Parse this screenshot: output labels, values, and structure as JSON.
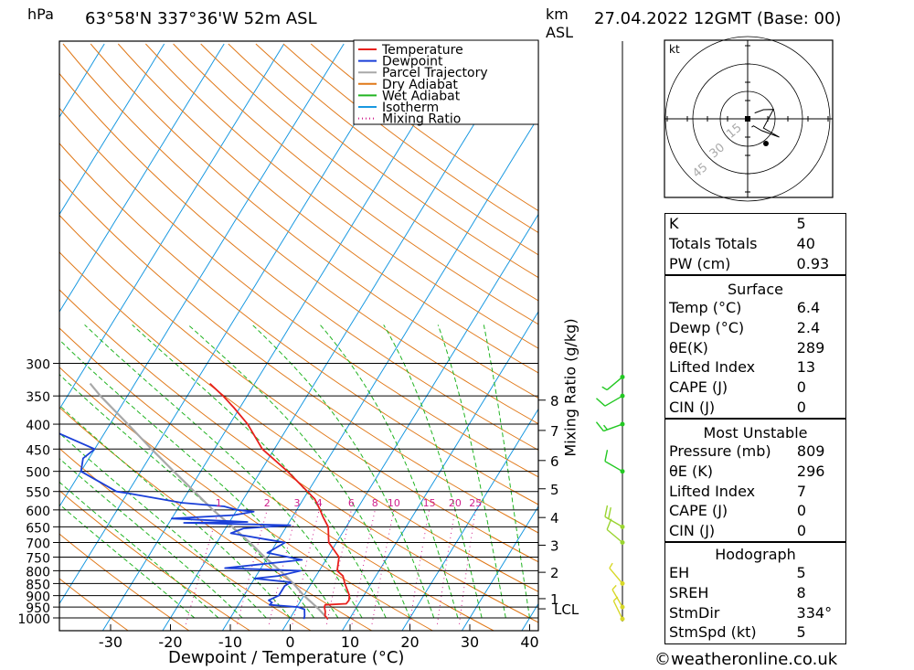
{
  "header": {
    "hpa_label": "hPa",
    "location": "63°58'N  337°36'W  52m  ASL",
    "km_label": "km",
    "asl_label": "ASL",
    "datetime": "27.04.2022  12GMT  (Base: 00)"
  },
  "chart_data": {
    "type": "skew-t",
    "xlabel": "Dewpoint / Temperature (°C)",
    "ylabel_right": "Mixing Ratio (g/kg)",
    "y_ticks_hpa": [
      300,
      350,
      400,
      450,
      500,
      550,
      600,
      650,
      700,
      750,
      800,
      850,
      900,
      950,
      1000
    ],
    "x_ticks_c": [
      -30,
      -20,
      -10,
      0,
      10,
      20,
      30,
      40
    ],
    "km_ticks": [
      {
        "km": "8",
        "p": 357
      },
      {
        "km": "7",
        "p": 412
      },
      {
        "km": "6",
        "p": 475
      },
      {
        "km": "5",
        "p": 543
      },
      {
        "km": "4",
        "p": 622
      },
      {
        "km": "3",
        "p": 709
      },
      {
        "km": "2",
        "p": 806
      },
      {
        "km": "1",
        "p": 913
      },
      {
        "km": "LCL",
        "p": 958
      }
    ],
    "mixing_ratio_labels": [
      "1",
      "2",
      "3",
      "4",
      "6",
      "8",
      "10",
      "15",
      "20",
      "25"
    ],
    "legend": [
      "Temperature",
      "Dewpoint",
      "Parcel Trajectory",
      "Dry Adiabat",
      "Wet Adiabat",
      "Isotherm",
      "Mixing Ratio"
    ],
    "colors": {
      "temperature": "#e8201c",
      "dewpoint": "#1a3fd8",
      "parcel": "#a8a8a8",
      "dry_adiabat": "#e07818",
      "wet_adiabat": "#22b422",
      "isotherm": "#1898e0",
      "mixing_ratio": "#d0208c"
    },
    "temperature": [
      [
        1005,
        6.4
      ],
      [
        990,
        5.6
      ],
      [
        970,
        5.2
      ],
      [
        950,
        4.6
      ],
      [
        940,
        4.5
      ],
      [
        935,
        7.9
      ],
      [
        920,
        8.0
      ],
      [
        900,
        7.6
      ],
      [
        850,
        5.6
      ],
      [
        820,
        4.5
      ],
      [
        800,
        3.0
      ],
      [
        750,
        1.9
      ],
      [
        700,
        -1.3
      ],
      [
        650,
        -3.0
      ],
      [
        620,
        -4.9
      ],
      [
        600,
        -6.1
      ],
      [
        570,
        -8.1
      ],
      [
        550,
        -10.1
      ],
      [
        500,
        -15.5
      ],
      [
        450,
        -22.0
      ],
      [
        400,
        -27.0
      ],
      [
        370,
        -31.0
      ],
      [
        350,
        -34.0
      ],
      [
        330,
        -37.5
      ]
    ],
    "dewpoint": [
      [
        1005,
        2.4
      ],
      [
        990,
        2.2
      ],
      [
        960,
        1.5
      ],
      [
        950,
        0.2
      ],
      [
        940,
        -4.8
      ],
      [
        930,
        -4.6
      ],
      [
        920,
        -5.4
      ],
      [
        900,
        -4.2
      ],
      [
        860,
        -4.2
      ],
      [
        845,
        -3.6
      ],
      [
        830,
        -10.0
      ],
      [
        820,
        -6.3
      ],
      [
        800,
        -3.1
      ],
      [
        790,
        -16.0
      ],
      [
        760,
        -4.0
      ],
      [
        735,
        -10.5
      ],
      [
        700,
        -8.6
      ],
      [
        690,
        -12.0
      ],
      [
        670,
        -18.6
      ],
      [
        655,
        -17.0
      ],
      [
        645,
        -9.5
      ],
      [
        638,
        -27.5
      ],
      [
        635,
        -17.0
      ],
      [
        625,
        -30.0
      ],
      [
        615,
        -20.0
      ],
      [
        605,
        -17.0
      ],
      [
        600,
        -20.0
      ],
      [
        590,
        -22.5
      ],
      [
        580,
        -30.0
      ],
      [
        555,
        -39.8
      ],
      [
        550,
        -42.0
      ],
      [
        500,
        -50.0
      ],
      [
        470,
        -51.0
      ],
      [
        450,
        -50.0
      ],
      [
        400,
        -62.0
      ],
      [
        360,
        -70.0
      ],
      [
        340,
        -72.0
      ],
      [
        330,
        -68.0
      ],
      [
        315,
        -73.0
      ]
    ],
    "parcel": [
      [
        1005,
        6.4
      ],
      [
        958,
        3.8
      ],
      [
        900,
        0.0
      ],
      [
        850,
        -3.0
      ],
      [
        800,
        -6.5
      ],
      [
        750,
        -10.5
      ],
      [
        700,
        -14.5
      ],
      [
        650,
        -19.0
      ],
      [
        600,
        -24.0
      ],
      [
        550,
        -29.0
      ],
      [
        500,
        -34.5
      ],
      [
        450,
        -40.5
      ],
      [
        400,
        -47.0
      ],
      [
        350,
        -54.5
      ],
      [
        330,
        -57.5
      ]
    ],
    "wind_barbs": [
      {
        "p": 1005,
        "dir": 334,
        "kt": 5
      },
      {
        "p": 950,
        "dir": 330,
        "kt": 5
      },
      {
        "p": 850,
        "dir": 320,
        "kt": 5
      },
      {
        "p": 700,
        "dir": 310,
        "kt": 10
      },
      {
        "p": 650,
        "dir": 300,
        "kt": 20
      },
      {
        "p": 500,
        "dir": 300,
        "kt": 10
      },
      {
        "p": 400,
        "dir": 250,
        "kt": 15
      },
      {
        "p": 350,
        "dir": 240,
        "kt": 10
      },
      {
        "p": 320,
        "dir": 230,
        "kt": 5
      }
    ],
    "hodograph": {
      "unit": "kt",
      "ring_labels": [
        "15",
        "30",
        "45"
      ]
    }
  },
  "indices": {
    "top": [
      {
        "label": "K",
        "value": "5"
      },
      {
        "label": "Totals Totals",
        "value": "40"
      },
      {
        "label": "PW (cm)",
        "value": "0.93"
      }
    ],
    "surface": {
      "title": "Surface",
      "rows": [
        {
          "label": "Temp (°C)",
          "value": "6.4"
        },
        {
          "label": "Dewp (°C)",
          "value": "2.4"
        },
        {
          "label": "θE(K)",
          "value": "289"
        },
        {
          "label": "Lifted Index",
          "value": "13"
        },
        {
          "label": "CAPE (J)",
          "value": "0"
        },
        {
          "label": "CIN (J)",
          "value": "0"
        }
      ]
    },
    "most_unstable": {
      "title": "Most Unstable",
      "rows": [
        {
          "label": "Pressure (mb)",
          "value": "809"
        },
        {
          "label": "θE (K)",
          "value": "296"
        },
        {
          "label": "Lifted Index",
          "value": "7"
        },
        {
          "label": "CAPE (J)",
          "value": "0"
        },
        {
          "label": "CIN (J)",
          "value": "0"
        }
      ]
    },
    "hodograph": {
      "title": "Hodograph",
      "rows": [
        {
          "label": "EH",
          "value": "5"
        },
        {
          "label": "SREH",
          "value": "8"
        },
        {
          "label": "StmDir",
          "value": "334°"
        },
        {
          "label": "StmSpd (kt)",
          "value": "5"
        }
      ]
    }
  },
  "footer": {
    "copyright": "©weatheronline.co.uk"
  }
}
